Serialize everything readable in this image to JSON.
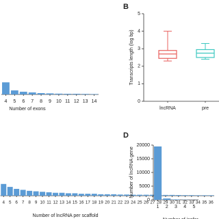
{
  "chart_data": [
    {
      "type": "bar",
      "xlabel": "Number of exons",
      "categories": [
        "4",
        "5",
        "6",
        "7",
        "8",
        "9",
        "10",
        "11",
        "12",
        "13",
        "14"
      ],
      "values": [
        9,
        3,
        2,
        1.5,
        1,
        0.8,
        0.6,
        0.5,
        0.5,
        0.4,
        0.3
      ],
      "color": "#5b9bd5",
      "ylim": [
        0,
        60
      ]
    },
    {
      "type": "box",
      "panel": "B",
      "ylabel": "Transcripts length (log bp)",
      "categories": [
        "lncRNA",
        "pre"
      ],
      "boxes": [
        {
          "color": "#e8605e",
          "min": 2.3,
          "q1": 2.45,
          "median": 2.7,
          "q3": 2.9,
          "max": 4.0
        },
        {
          "color": "#3ec8c0",
          "min": 2.4,
          "q1": 2.5,
          "median": 2.75,
          "q3": 2.95,
          "max": 3.3
        }
      ],
      "ylim": [
        0,
        5
      ],
      "yticks": [
        0,
        1,
        2,
        3,
        4,
        5
      ]
    },
    {
      "type": "bar",
      "xlabel": "Number of lncRNA per scaffold",
      "categories": [
        "4",
        "5",
        "6",
        "7",
        "8",
        "9",
        "10",
        "11",
        "12",
        "13",
        "14",
        "15",
        "16",
        "17",
        "18",
        "19",
        "20",
        "21",
        "22",
        "23",
        "24",
        "25",
        "26",
        "27",
        "28",
        "29",
        "30",
        "31",
        "32",
        "33",
        "34",
        "35",
        "36"
      ],
      "values": [
        12,
        9,
        7,
        6,
        5,
        4.5,
        4,
        3.5,
        3,
        3,
        2.5,
        2.5,
        2,
        2,
        2,
        1.5,
        1.5,
        1.5,
        1.2,
        1.2,
        1,
        1,
        1,
        1,
        0.8,
        0.8,
        0.8,
        0.7,
        0.6,
        0.6,
        0.5,
        0.5,
        0.5
      ],
      "color": "#5b9bd5",
      "ylim": [
        0,
        60
      ]
    },
    {
      "type": "bar",
      "panel": "D",
      "xlabel": "Number of isofor",
      "ylabel": "Number of lncRNA gene",
      "categories": [
        "1",
        "2",
        "3",
        "4",
        "5"
      ],
      "values": [
        19500,
        500,
        150,
        60,
        30
      ],
      "color": "#5b9bd5",
      "ylim": [
        0,
        20000
      ],
      "yticks": [
        0,
        5000,
        10000,
        15000,
        20000
      ]
    }
  ]
}
